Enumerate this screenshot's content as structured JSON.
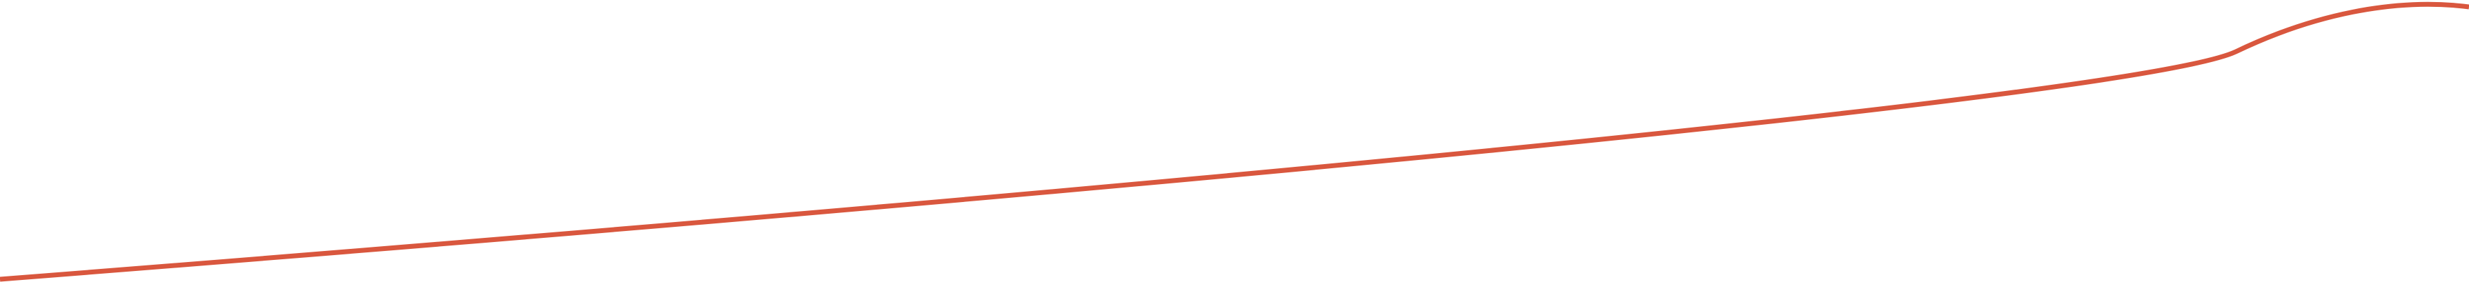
{
  "graphic": {
    "stroke_color": "#d9573e",
    "background_color": "#ffffff"
  }
}
